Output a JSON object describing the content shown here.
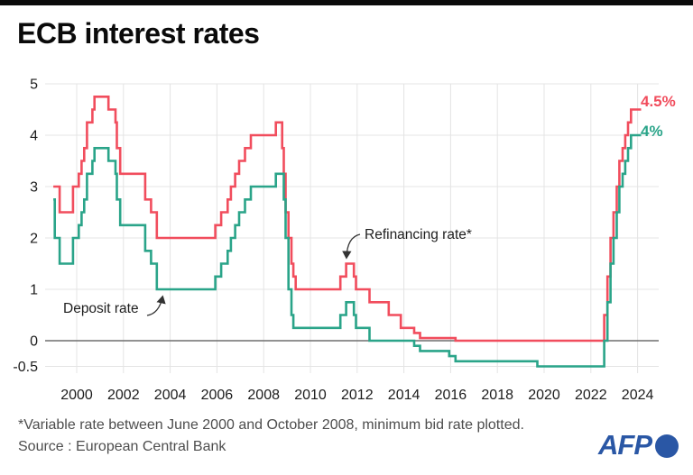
{
  "chart_data": {
    "type": "line",
    "title": "ECB interest rates",
    "subtitle": "",
    "xlabel": "",
    "ylabel": "",
    "xlim": [
      1998.8,
      2025.2
    ],
    "ylim": [
      -0.75,
      5.25
    ],
    "grid": true,
    "grid_color": "#e4e4e4",
    "zero_line_color": "#6e6e6e",
    "x_ticks": [
      2000,
      2002,
      2004,
      2006,
      2008,
      2010,
      2012,
      2014,
      2016,
      2018,
      2020,
      2022,
      2024
    ],
    "y_ticks": [
      {
        "label": "5",
        "value": 5
      },
      {
        "label": "4",
        "value": 4
      },
      {
        "label": "3",
        "value": 3
      },
      {
        "label": "2",
        "value": 2
      },
      {
        "label": "1",
        "value": 1
      },
      {
        "label": "0",
        "value": 0
      },
      {
        "label": "-0.5",
        "value": -0.5
      }
    ],
    "end_year": 2024.15,
    "series": [
      {
        "name": "Refinancing rate*",
        "color": "#f14d5d",
        "end_label": "4.5%",
        "step": "after",
        "points": [
          [
            1999.0,
            3.0
          ],
          [
            1999.27,
            2.5
          ],
          [
            1999.84,
            3.0
          ],
          [
            2000.09,
            3.25
          ],
          [
            2000.21,
            3.5
          ],
          [
            2000.32,
            3.75
          ],
          [
            2000.44,
            4.25
          ],
          [
            2000.67,
            4.5
          ],
          [
            2000.76,
            4.75
          ],
          [
            2001.36,
            4.5
          ],
          [
            2001.66,
            4.25
          ],
          [
            2001.72,
            3.75
          ],
          [
            2001.86,
            3.25
          ],
          [
            2002.93,
            2.75
          ],
          [
            2003.18,
            2.5
          ],
          [
            2003.43,
            2.0
          ],
          [
            2005.93,
            2.25
          ],
          [
            2006.18,
            2.5
          ],
          [
            2006.46,
            2.75
          ],
          [
            2006.6,
            3.0
          ],
          [
            2006.78,
            3.25
          ],
          [
            2006.95,
            3.5
          ],
          [
            2007.2,
            3.75
          ],
          [
            2007.45,
            4.0
          ],
          [
            2008.52,
            4.25
          ],
          [
            2008.79,
            3.75
          ],
          [
            2008.86,
            3.25
          ],
          [
            2008.94,
            2.5
          ],
          [
            2009.06,
            2.0
          ],
          [
            2009.19,
            1.5
          ],
          [
            2009.27,
            1.25
          ],
          [
            2009.37,
            1.0
          ],
          [
            2011.28,
            1.25
          ],
          [
            2011.53,
            1.5
          ],
          [
            2011.86,
            1.25
          ],
          [
            2011.95,
            1.0
          ],
          [
            2012.53,
            0.75
          ],
          [
            2013.35,
            0.5
          ],
          [
            2013.87,
            0.25
          ],
          [
            2014.44,
            0.15
          ],
          [
            2014.69,
            0.05
          ],
          [
            2016.21,
            0.0
          ],
          [
            2022.57,
            0.5
          ],
          [
            2022.71,
            1.25
          ],
          [
            2022.84,
            2.0
          ],
          [
            2022.97,
            2.5
          ],
          [
            2023.11,
            3.0
          ],
          [
            2023.22,
            3.5
          ],
          [
            2023.36,
            3.75
          ],
          [
            2023.47,
            4.0
          ],
          [
            2023.59,
            4.25
          ],
          [
            2023.72,
            4.5
          ]
        ]
      },
      {
        "name": "Deposit rate",
        "color": "#2aa489",
        "end_label": "4%",
        "step": "after",
        "points": [
          [
            1999.0,
            2.75
          ],
          [
            1999.06,
            2.0
          ],
          [
            1999.27,
            1.5
          ],
          [
            1999.84,
            2.0
          ],
          [
            2000.09,
            2.25
          ],
          [
            2000.21,
            2.5
          ],
          [
            2000.32,
            2.75
          ],
          [
            2000.44,
            3.25
          ],
          [
            2000.67,
            3.5
          ],
          [
            2000.76,
            3.75
          ],
          [
            2001.36,
            3.5
          ],
          [
            2001.66,
            3.25
          ],
          [
            2001.72,
            2.75
          ],
          [
            2001.86,
            2.25
          ],
          [
            2002.93,
            1.75
          ],
          [
            2003.18,
            1.5
          ],
          [
            2003.43,
            1.0
          ],
          [
            2005.93,
            1.25
          ],
          [
            2006.18,
            1.5
          ],
          [
            2006.46,
            1.75
          ],
          [
            2006.6,
            2.0
          ],
          [
            2006.78,
            2.25
          ],
          [
            2006.95,
            2.5
          ],
          [
            2007.2,
            2.75
          ],
          [
            2007.45,
            3.0
          ],
          [
            2008.52,
            3.25
          ],
          [
            2008.86,
            2.75
          ],
          [
            2008.94,
            2.0
          ],
          [
            2009.06,
            1.0
          ],
          [
            2009.19,
            0.5
          ],
          [
            2009.27,
            0.25
          ],
          [
            2011.28,
            0.5
          ],
          [
            2011.53,
            0.75
          ],
          [
            2011.86,
            0.5
          ],
          [
            2011.95,
            0.25
          ],
          [
            2012.53,
            0.0
          ],
          [
            2014.44,
            -0.1
          ],
          [
            2014.69,
            -0.2
          ],
          [
            2015.94,
            -0.3
          ],
          [
            2016.21,
            -0.4
          ],
          [
            2019.71,
            -0.5
          ],
          [
            2022.57,
            0.0
          ],
          [
            2022.71,
            0.75
          ],
          [
            2022.84,
            1.5
          ],
          [
            2022.97,
            2.0
          ],
          [
            2023.11,
            2.5
          ],
          [
            2023.22,
            3.0
          ],
          [
            2023.36,
            3.25
          ],
          [
            2023.47,
            3.5
          ],
          [
            2023.59,
            3.75
          ],
          [
            2023.72,
            4.0
          ]
        ]
      }
    ]
  },
  "footer": {
    "note": "*Variable rate between June 2000 and October 2008, minimum bid rate plotted.",
    "source": "Source : European Central Bank"
  },
  "logo": {
    "text": "AFP"
  }
}
